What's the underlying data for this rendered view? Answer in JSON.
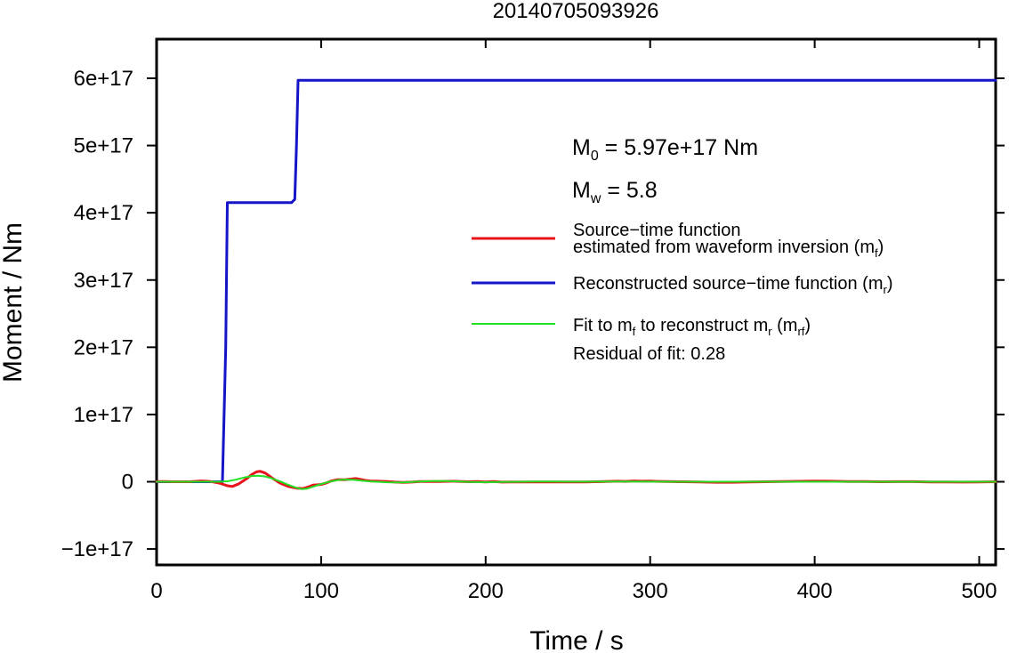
{
  "chart_data": {
    "type": "line",
    "title": "20140705093926",
    "xlabel": "Time / s",
    "ylabel": "Moment / Nm",
    "xlim": [
      0,
      510
    ],
    "ylim": [
      -1.2e+17,
      6.6e+17
    ],
    "x_ticks": [
      0,
      100,
      200,
      300,
      400,
      500
    ],
    "x_tick_labels": [
      "0",
      "100",
      "200",
      "300",
      "400",
      "500"
    ],
    "y_ticks": [
      -1e+17,
      0,
      1e+17,
      2e+17,
      3e+17,
      4e+17,
      5e+17,
      6e+17
    ],
    "y_tick_labels": [
      "−1e+17",
      "0",
      "1e+17",
      "2e+17",
      "3e+17",
      "4e+17",
      "5e+17",
      "6e+17"
    ],
    "grid": false,
    "legend_position": "right",
    "annotations": {
      "m0_symbol": "M",
      "m0_subscript": "0",
      "m0_value": " = 5.97e+17 Nm",
      "mw_symbol": "M",
      "mw_subscript": "w",
      "mw_value": " = 5.8",
      "residual": "Residual of fit: 0.28"
    },
    "legend": [
      {
        "color": "#e8141c",
        "line1": "Source−time function",
        "line2_text": "estimated from waveform inversion (m",
        "line2_sub": "f",
        "line2_end": ")"
      },
      {
        "color": "#1414c8",
        "text": "Reconstructed source−time function (m",
        "sub": "r",
        "end": ")"
      },
      {
        "color": "#22e022",
        "text_a": "Fit to m",
        "sub_a": "f",
        "text_b": " to reconstruct m",
        "sub_b": "r",
        "text_c": " (m",
        "sub_c": "rf",
        "end": ")"
      }
    ],
    "series": [
      {
        "color": "#1414c8",
        "x": [
          0,
          40,
          42,
          43,
          82,
          84,
          85,
          86,
          510
        ],
        "y": [
          0,
          0,
          2e+17,
          4.15e+17,
          4.15e+17,
          4.2e+17,
          5e+17,
          5.97e+17,
          5.97e+17
        ]
      },
      {
        "color": "#e8141c",
        "x": [
          0,
          5,
          10,
          20,
          27,
          33,
          38,
          43,
          46,
          50,
          55,
          58,
          61,
          63,
          66,
          70,
          75,
          80,
          85,
          89,
          92,
          95,
          98,
          100,
          103,
          106,
          110,
          114,
          118,
          121,
          124,
          127,
          130,
          135,
          140,
          145,
          150,
          155,
          160,
          165,
          170,
          175,
          180,
          185,
          190,
          195,
          200,
          205,
          210,
          215,
          220,
          230,
          240,
          250,
          260,
          270,
          280,
          285,
          290,
          295,
          300,
          305,
          310,
          320,
          330,
          340,
          350,
          360,
          370,
          380,
          390,
          400,
          410,
          420,
          430,
          440,
          450,
          460,
          470,
          480,
          490,
          500,
          510
        ],
        "y": [
          300000000000000.0,
          300000000000000.0,
          0,
          0,
          1200000000000000.0,
          200000000000000.0,
          -2000000000000000.0,
          -6000000000000000.0,
          -7000000000000000.0,
          -3000000000000000.0,
          5000000000000000.0,
          1.1e+16,
          1.5e+16,
          1.55e+16,
          1.3e+16,
          6000000000000000.0,
          -2000000000000000.0,
          -7000000000000000.0,
          -9500000000000000.0,
          -1e+16,
          -8000000000000000.0,
          -5000000000000000.0,
          -4500000000000000.0,
          -4000000000000000.0,
          -2000000000000000.0,
          1000000000000000.0,
          3200000000000000.0,
          3000000000000000.0,
          4000000000000000.0,
          4700000000000000.0,
          3500000000000000.0,
          2000000000000000.0,
          1200000000000000.0,
          800000000000000.0,
          200000000000000.0,
          -500000000000000.0,
          -1000000000000000.0,
          -500000000000000.0,
          200000000000000.0,
          400000000000000.0,
          300000000000000.0,
          500000000000000.0,
          800000000000000.0,
          400000000000000.0,
          0,
          400000000000000.0,
          -400000000000000.0,
          200000000000000.0,
          -500000000000000.0,
          -200000000000000.0,
          -400000000000000.0,
          -200000000000000.0,
          -300000000000000.0,
          -200000000000000.0,
          -300000000000000.0,
          100000000000000.0,
          800000000000000.0,
          500000000000000.0,
          1200000000000000.0,
          800000000000000.0,
          1000000000000000.0,
          500000000000000.0,
          300000000000000.0,
          0,
          -400000000000000.0,
          -800000000000000.0,
          -800000000000000.0,
          -400000000000000.0,
          0,
          400000000000000.0,
          700000000000000.0,
          1000000000000000.0,
          800000000000000.0,
          400000000000000.0,
          200000000000000.0,
          0,
          100000000000000.0,
          100000000000000.0,
          -200000000000000.0,
          -400000000000000.0,
          -500000000000000.0,
          -400000000000000.0,
          0
        ]
      },
      {
        "color": "#22e022",
        "x": [
          0,
          20,
          30,
          38,
          43,
          48,
          53,
          58,
          62,
          66,
          70,
          75,
          80,
          85,
          88,
          91,
          95,
          100,
          105,
          110,
          115,
          120,
          125,
          130,
          140,
          150,
          160,
          170,
          180,
          190,
          200,
          210,
          220,
          230,
          240,
          260,
          280,
          300,
          320,
          340,
          360,
          380,
          400,
          420,
          440,
          460,
          480,
          500,
          510
        ],
        "y": [
          0,
          0,
          0,
          0,
          600000000000000.0,
          3000000000000000.0,
          6200000000000000.0,
          8500000000000000.0,
          9000000000000000.0,
          7800000000000000.0,
          5000000000000000.0,
          500000000000000.0,
          -4500000000000000.0,
          -9000000000000000.0,
          -1.08e+16,
          -1.05e+16,
          -7500000000000000.0,
          -3500000000000000.0,
          0,
          2500000000000000.0,
          3300000000000000.0,
          2800000000000000.0,
          1500000000000000.0,
          500000000000000.0,
          -800000000000000.0,
          -1000000000000000.0,
          200000000000000.0,
          1200000000000000.0,
          800000000000000.0,
          -200000000000000.0,
          -600000000000000.0,
          -400000000000000.0,
          0,
          300000000000000.0,
          300000000000000.0,
          100000000000000.0,
          200000000000000.0,
          100000000000000.0,
          0,
          0,
          100000000000000.0,
          0,
          0,
          0,
          0,
          0,
          0,
          0,
          0
        ]
      }
    ]
  }
}
